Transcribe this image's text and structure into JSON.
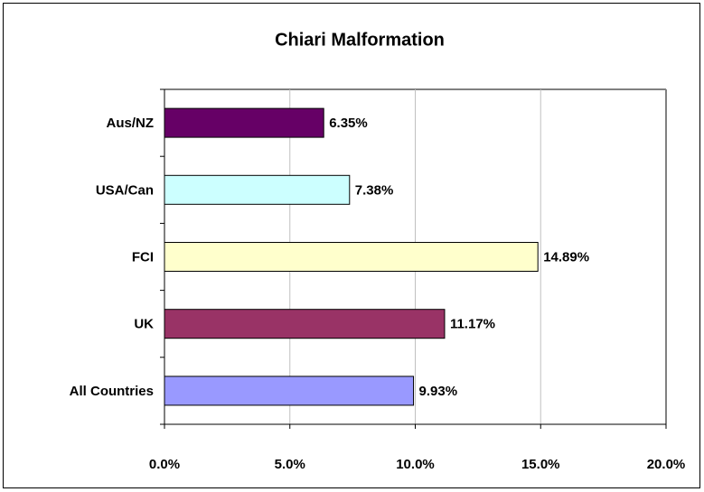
{
  "chart_data": {
    "type": "bar",
    "orientation": "horizontal",
    "title": "Chiari Malformation",
    "categories": [
      "Aus/NZ",
      "USA/Can",
      "FCI",
      "UK",
      "All Countries"
    ],
    "values": [
      6.35,
      7.38,
      14.89,
      11.17,
      9.93
    ],
    "value_labels": [
      "6.35%",
      "7.38%",
      "14.89%",
      "11.17%",
      "9.93%"
    ],
    "colors": [
      "#660066",
      "#ccffff",
      "#ffffcc",
      "#993366",
      "#9999ff"
    ],
    "xlim": [
      0,
      20
    ],
    "xticks": [
      {
        "value": 0,
        "label": "0.0%"
      },
      {
        "value": 5,
        "label": "5.0%"
      },
      {
        "value": 10,
        "label": "10.0%"
      },
      {
        "value": 15,
        "label": "15.0%"
      },
      {
        "value": 20,
        "label": "20.0%"
      }
    ],
    "grid": true
  }
}
